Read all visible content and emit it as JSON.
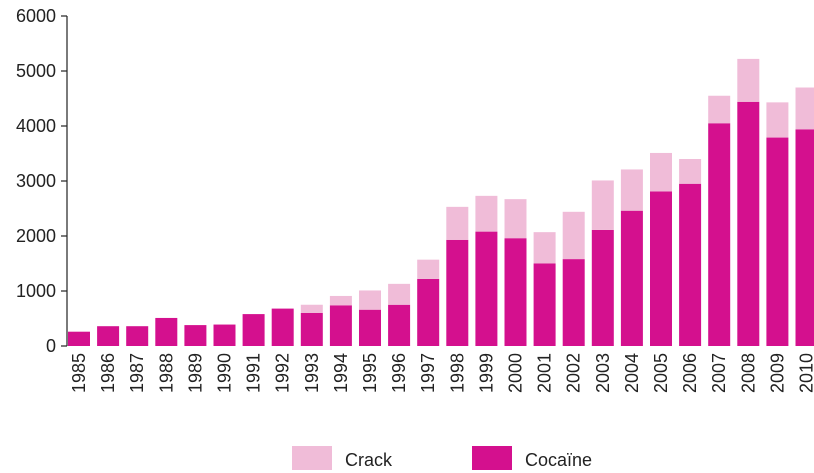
{
  "chart_data": {
    "type": "bar",
    "stacked": true,
    "categories": [
      "1985",
      "1986",
      "1987",
      "1988",
      "1989",
      "1990",
      "1991",
      "1992",
      "1993",
      "1994",
      "1995",
      "1996",
      "1997",
      "1998",
      "1999",
      "2000",
      "2001",
      "2002",
      "2003",
      "2004",
      "2005",
      "2006",
      "2007",
      "2008",
      "2009",
      "2010"
    ],
    "series": [
      {
        "name": "Cocaïne",
        "color": "#d4108e",
        "values": [
          260,
          360,
          360,
          510,
          380,
          390,
          580,
          680,
          600,
          740,
          660,
          750,
          1220,
          1930,
          2080,
          1960,
          1500,
          1580,
          2110,
          2460,
          2810,
          2950,
          4050,
          4440,
          3790,
          3940
        ]
      },
      {
        "name": "Crack",
        "color": "#f0bcd8",
        "values": [
          0,
          0,
          0,
          0,
          0,
          0,
          0,
          0,
          150,
          170,
          350,
          380,
          350,
          600,
          650,
          710,
          570,
          860,
          900,
          750,
          700,
          450,
          500,
          780,
          640,
          760
        ]
      }
    ],
    "xlabel": "",
    "ylabel": "",
    "ylim": [
      0,
      6000
    ],
    "yticks": [
      "0",
      "1000",
      "2000",
      "3000",
      "4000",
      "5000",
      "6000"
    ],
    "grid": false,
    "legend_position": "bottom-center"
  }
}
